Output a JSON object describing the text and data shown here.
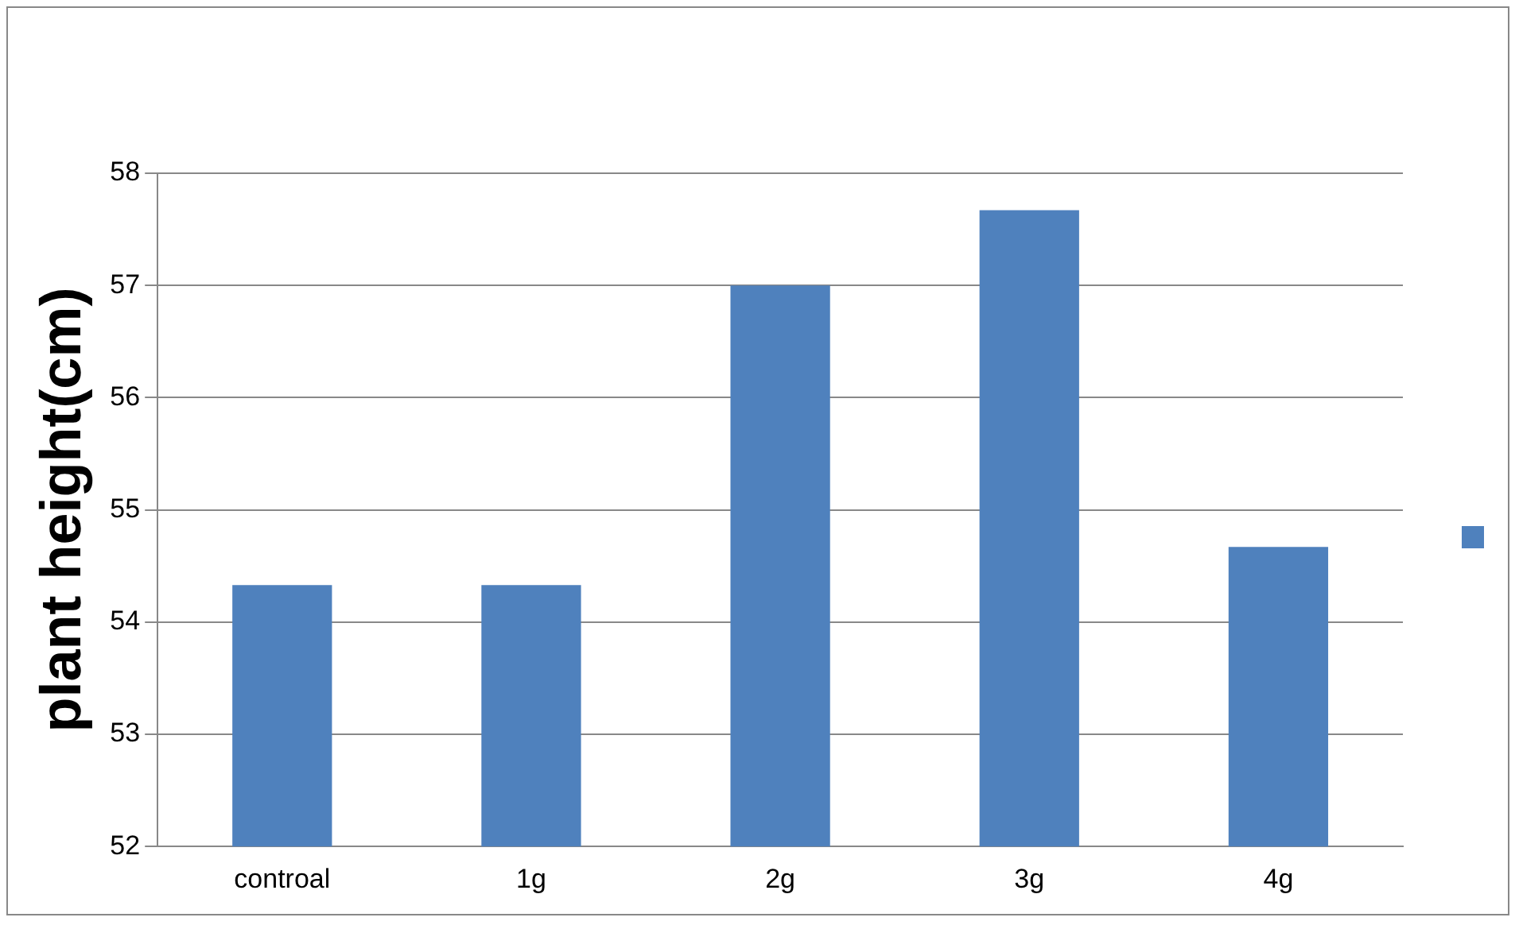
{
  "chart_data": {
    "type": "bar",
    "ylabel": "plant height(cm)",
    "categories": [
      "controal",
      "1g",
      "2g",
      "3g",
      "4g"
    ],
    "series": [
      {
        "color": "#4f81bd",
        "values": [
          54.33,
          54.33,
          57.0,
          57.67,
          54.67
        ]
      }
    ],
    "ylim": [
      52,
      58
    ],
    "yticks": [
      52,
      53,
      54,
      55,
      56,
      57,
      58
    ],
    "grid": "y"
  }
}
